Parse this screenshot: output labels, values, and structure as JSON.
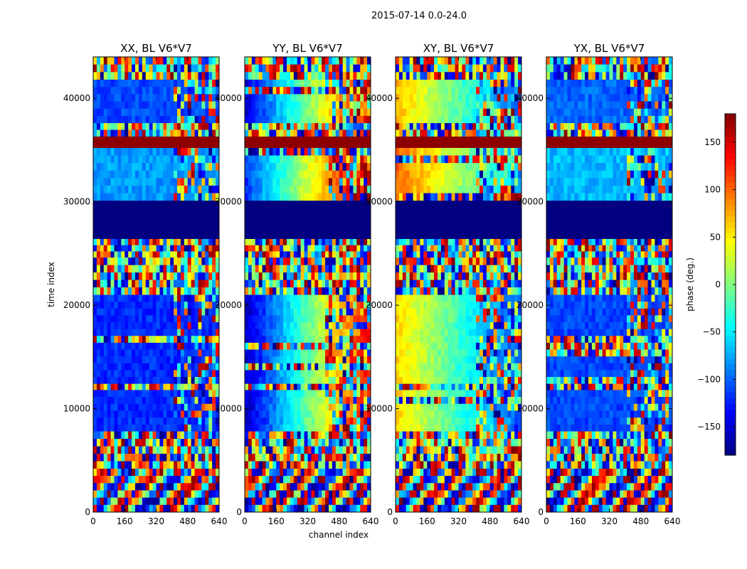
{
  "chart_data": {
    "type": "heatmap",
    "suptitle": "2015-07-14 0.0-24.0",
    "xlabel": "channel index",
    "ylabel": "time index",
    "xlim": [
      0,
      640
    ],
    "ylim": [
      0,
      44000
    ],
    "xticks": [
      "0",
      "160",
      "320",
      "480",
      "640"
    ],
    "yticks": [
      "0",
      "10000",
      "20000",
      "30000",
      "40000"
    ],
    "panels": [
      {
        "title": "XX, BL V6*V7",
        "baseline_phase": -120,
        "slope": 0,
        "split_channel": 400
      },
      {
        "title": "YY, BL V6*V7",
        "baseline_phase": -160,
        "slope": 300,
        "split_channel": 400
      },
      {
        "title": "XY, BL V6*V7",
        "baseline_phase": 60,
        "slope": -170,
        "split_channel": 400
      },
      {
        "title": "YX, BL V6*V7",
        "baseline_phase": -110,
        "slope": 0,
        "split_channel": 400
      }
    ],
    "colorbar": {
      "label": "phase (deg.)",
      "range": [
        -180,
        180
      ],
      "ticks": [
        "−150",
        "−100",
        "−50",
        "0",
        "50",
        "100",
        "150"
      ],
      "colormap": "jet"
    },
    "bands": [
      {
        "from": 41800,
        "to": 44000,
        "kind": "noise"
      },
      {
        "from": 37600,
        "to": 41800,
        "kind": "coherent",
        "offset": 10
      },
      {
        "from": 36300,
        "to": 37600,
        "kind": "noise"
      },
      {
        "from": 35200,
        "to": 36300,
        "kind": "flag",
        "value": 175
      },
      {
        "from": 30100,
        "to": 35200,
        "kind": "coherent",
        "offset": 40
      },
      {
        "from": 26400,
        "to": 30100,
        "kind": "flag",
        "value": -180
      },
      {
        "from": 24600,
        "to": 26400,
        "kind": "noise"
      },
      {
        "from": 21000,
        "to": 24600,
        "kind": "noise"
      },
      {
        "from": 12400,
        "to": 21000,
        "kind": "coherent",
        "offset": 0
      },
      {
        "from": 11800,
        "to": 12400,
        "kind": "noise"
      },
      {
        "from": 7800,
        "to": 11800,
        "kind": "coherent",
        "offset": 0
      },
      {
        "from": 4200,
        "to": 7800,
        "kind": "noise"
      },
      {
        "from": 0,
        "to": 4200,
        "kind": "fringe"
      }
    ]
  }
}
